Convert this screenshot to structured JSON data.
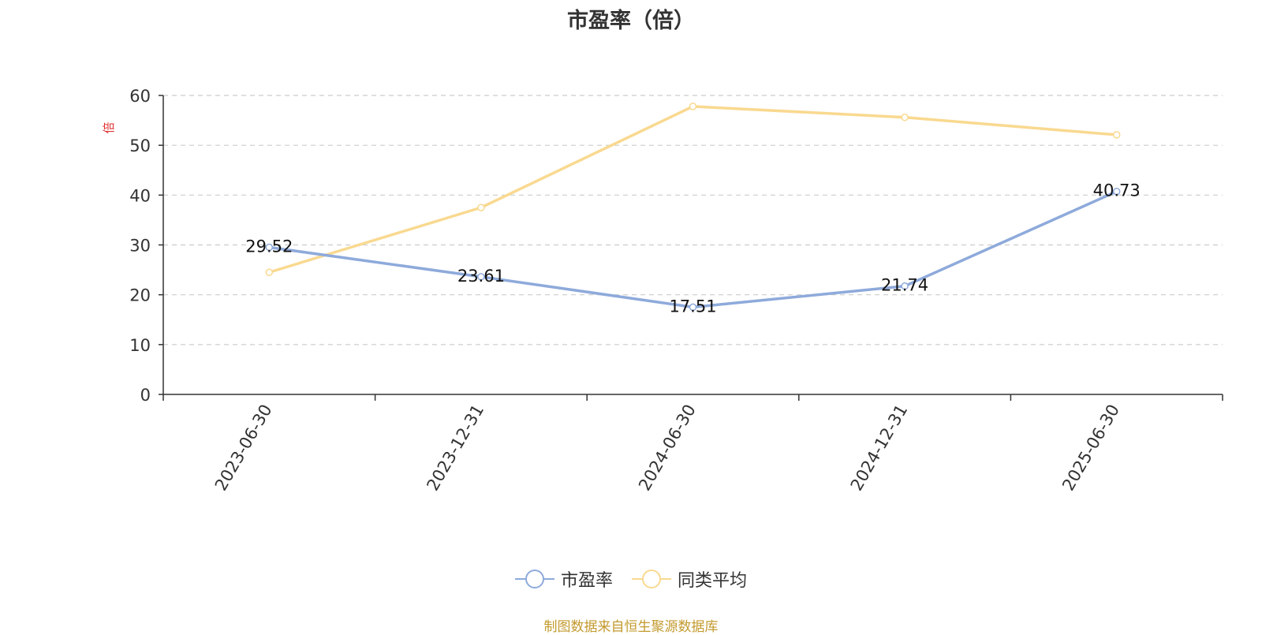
{
  "chart_data": {
    "type": "line",
    "title": "市盈率（倍）",
    "ylabel": "倍",
    "ylim": [
      0,
      60
    ],
    "yticks": [
      0,
      10,
      20,
      30,
      40,
      50,
      60
    ],
    "categories": [
      "2023-06-30",
      "2023-12-31",
      "2024-06-30",
      "2024-12-31",
      "2025-06-30"
    ],
    "series": [
      {
        "name": "市盈率",
        "color": "#8eaadb",
        "values": [
          29.52,
          23.61,
          17.51,
          21.74,
          40.73
        ],
        "labels": [
          "29.52",
          "23.61",
          "17.51",
          "21.74",
          "40.73"
        ]
      },
      {
        "name": "同类平均",
        "color": "#f9d990",
        "values": [
          24.5,
          37.5,
          57.8,
          55.6,
          52.1
        ]
      }
    ],
    "grid": true,
    "legend_position": "bottom"
  },
  "footer": "制图数据来自恒生聚源数据库",
  "colors": {
    "ylabel": "#e03030",
    "footer": "#c39a2e",
    "axis": "#333333",
    "grid": "#cccccc"
  }
}
